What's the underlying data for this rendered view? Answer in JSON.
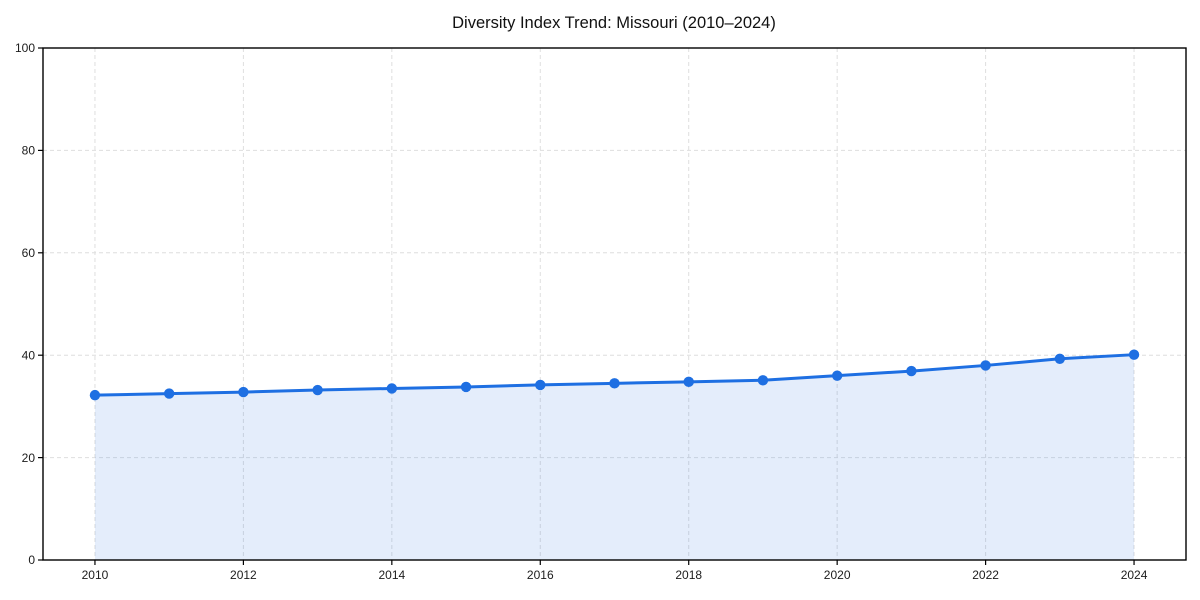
{
  "figure": {
    "background": "#ffffff"
  },
  "chart_data": {
    "type": "area",
    "title": "Diversity Index Trend: Missouri (2010–2024)",
    "x": [
      2010,
      2011,
      2012,
      2013,
      2014,
      2015,
      2016,
      2017,
      2018,
      2019,
      2020,
      2021,
      2022,
      2023,
      2024
    ],
    "series": [
      {
        "name": "Diversity Index",
        "values": [
          32.2,
          32.5,
          32.8,
          33.2,
          33.5,
          33.8,
          34.2,
          34.5,
          34.8,
          35.1,
          36.0,
          36.9,
          38.0,
          39.3,
          40.1
        ]
      }
    ],
    "xlabel": "",
    "ylabel": "",
    "xlim": [
      2009.3,
      2024.7
    ],
    "ylim": [
      0,
      100
    ],
    "xticks": [
      2010,
      2012,
      2014,
      2016,
      2018,
      2020,
      2022,
      2024
    ],
    "yticks": [
      0,
      20,
      40,
      60,
      80,
      100
    ],
    "grid": true,
    "grid_style": "dashed",
    "legend": "none",
    "marker": "circle",
    "colors": {
      "line": "#1e6fe2",
      "fill_opacity": "0.12",
      "grid": "#dedede",
      "spine": "#000000",
      "tick_label": "#1c1c1c",
      "title": "#111111",
      "background": "#ffffff"
    }
  }
}
